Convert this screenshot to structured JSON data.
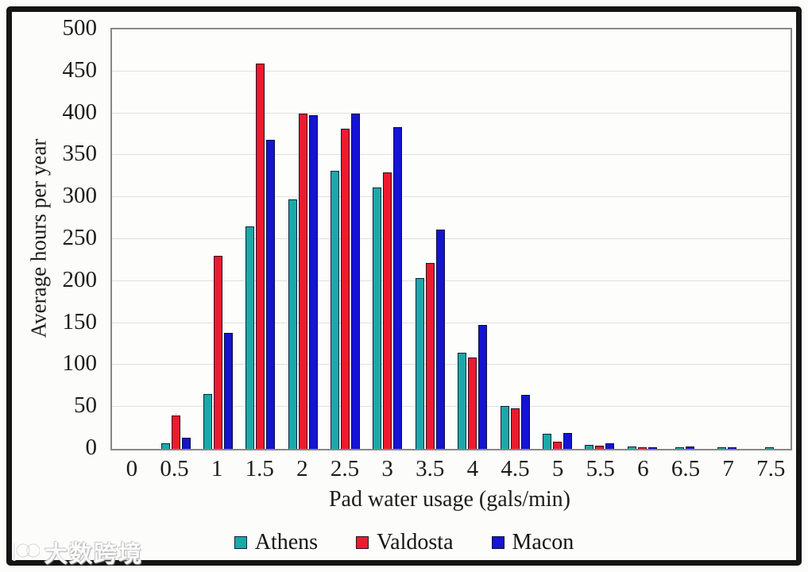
{
  "watermark": {
    "text": "大数跨境",
    "logo": "hundred-circles-logo"
  },
  "chart_data": {
    "type": "bar",
    "title": "",
    "xlabel": "Pad water usage (gals/min)",
    "ylabel": "Average hours per year",
    "ylim": [
      0,
      500
    ],
    "ytick_step": 50,
    "grid": true,
    "legend_position": "bottom",
    "categories": [
      "0",
      "0.5",
      "1",
      "1.5",
      "2",
      "2.5",
      "3",
      "3.5",
      "4",
      "4.5",
      "5",
      "5.5",
      "6",
      "6.5",
      "7",
      "7.5"
    ],
    "series": [
      {
        "name": "Athens",
        "color": "#1BA8A8",
        "values": [
          0,
          7,
          65,
          265,
          297,
          331,
          312,
          204,
          115,
          51,
          18,
          5,
          3,
          2,
          2,
          2
        ]
      },
      {
        "name": "Valdosta",
        "color": "#EC1B2E",
        "values": [
          0,
          40,
          230,
          459,
          400,
          382,
          330,
          222,
          109,
          48,
          9,
          4,
          2,
          0,
          0,
          0
        ]
      },
      {
        "name": "Macon",
        "color": "#1414D2",
        "values": [
          0,
          13,
          138,
          368,
          398,
          400,
          384,
          261,
          148,
          64,
          19,
          7,
          2,
          3,
          2,
          0
        ]
      }
    ]
  },
  "colors": {
    "frame": "#151515",
    "plot_border": "#888888",
    "gridline": "#e0e0df",
    "bar_outline": "#0c0c28",
    "text": "#1c1c1c"
  }
}
